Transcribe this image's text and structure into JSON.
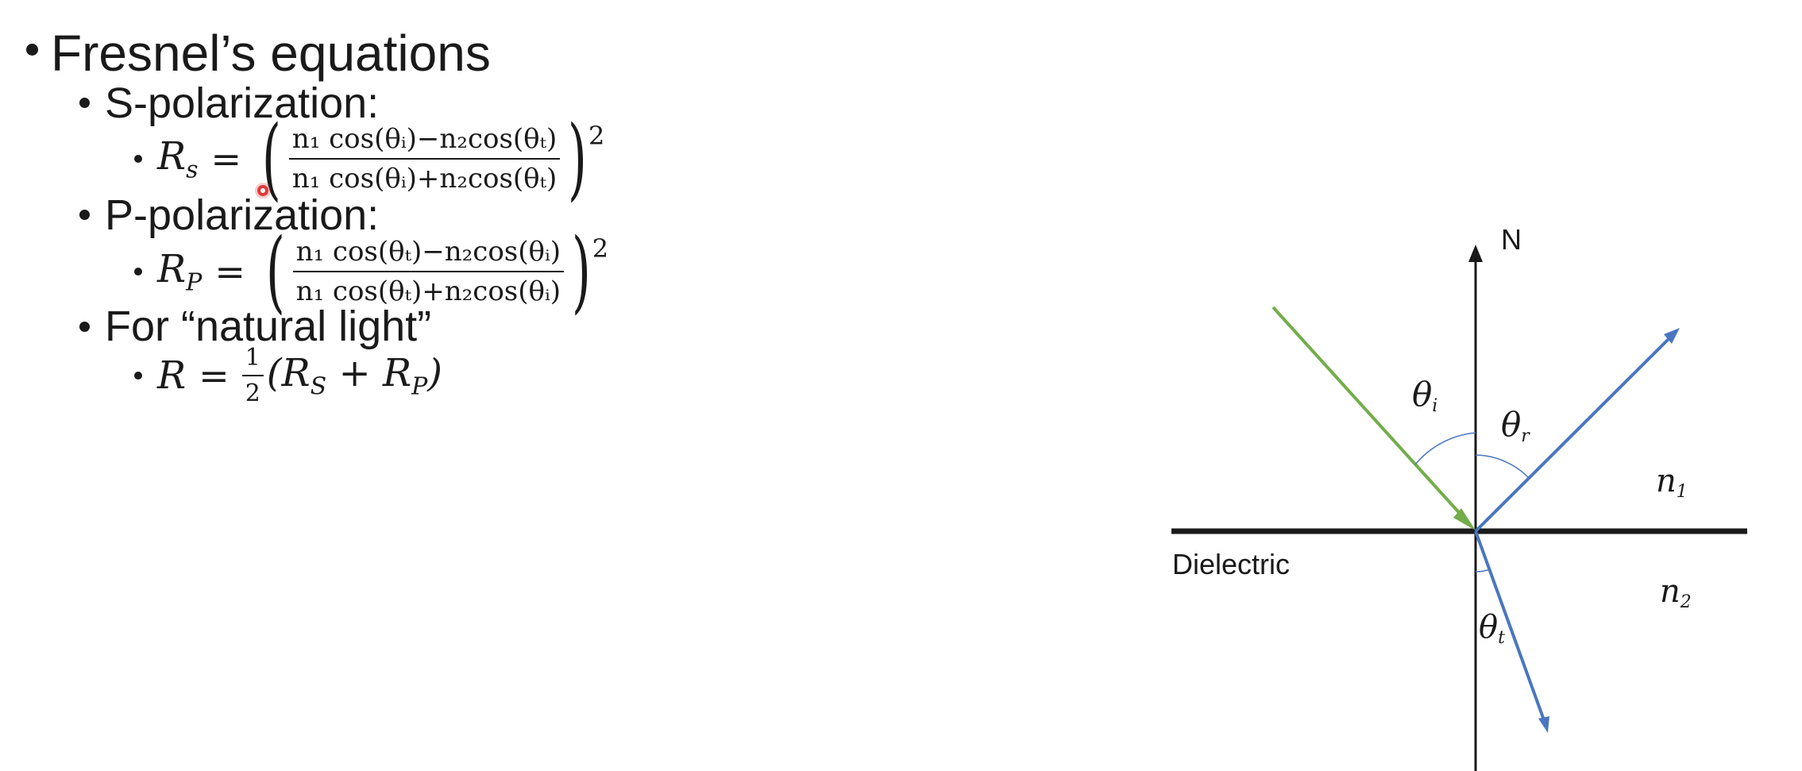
{
  "bullets": {
    "title": "Fresnel’s equations",
    "s_polarization": "S-polarization:",
    "p_polarization": "P-polarization:",
    "natural_light": "For “natural light”"
  },
  "equations": {
    "rs": {
      "lhs": "R",
      "lhs_sub": "s",
      "numerator": "n₁ cos(θᵢ)−n₂cos(θₜ)",
      "denominator": "n₁ cos(θᵢ)+n₂cos(θₜ)",
      "exponent": "2"
    },
    "rp": {
      "lhs": "R",
      "lhs_sub": "P",
      "numerator": "n₁ cos(θₜ)−n₂cos(θᵢ)",
      "denominator": "n₁ cos(θₜ)+n₂cos(θᵢ)",
      "exponent": "2"
    },
    "r": {
      "lhs": "R",
      "half_num": "1",
      "half_den": "2",
      "rhs": "(R",
      "rs_sub": "S",
      "plus": " + R",
      "rp_sub": "P",
      "close": ")"
    }
  },
  "diagram": {
    "normal_label": "N",
    "theta_i": "θ",
    "theta_i_sub": "i",
    "theta_r": "θ",
    "theta_r_sub": "r",
    "theta_t": "θ",
    "theta_t_sub": "t",
    "n1": "n",
    "n1_sub": "1",
    "n2": "n",
    "n2_sub": "2",
    "medium_label": "Dielectric",
    "colors": {
      "incident": "#72ad4a",
      "reflected": "#4a76c0",
      "refracted": "#4a76c0",
      "axis": "#1a1a1a"
    }
  }
}
